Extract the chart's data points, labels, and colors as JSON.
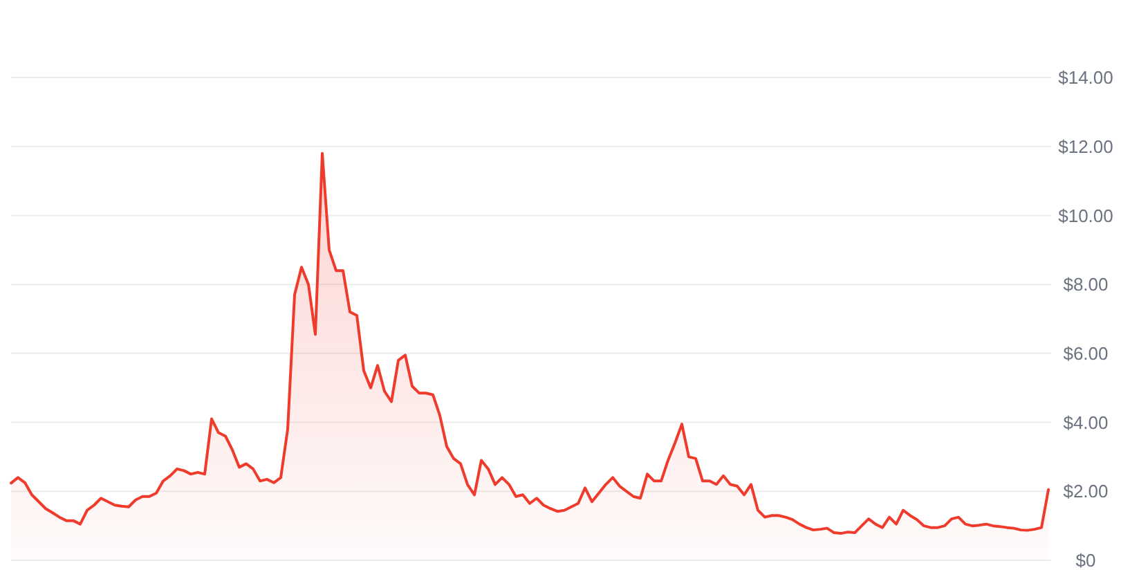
{
  "chart_data": {
    "type": "area",
    "categories": [
      null,
      null,
      null,
      null,
      null,
      null,
      null,
      null,
      null,
      null,
      null,
      null,
      null,
      null,
      null,
      null,
      null,
      null,
      null,
      null,
      null,
      null,
      null,
      null,
      null,
      null,
      null,
      null,
      null,
      null,
      null,
      null,
      null,
      null,
      null,
      null,
      null,
      null,
      null,
      null,
      null,
      null,
      null,
      null,
      null,
      null,
      null,
      null,
      null,
      null,
      null,
      null,
      null,
      null,
      null,
      null,
      null,
      null,
      null,
      null,
      null,
      null,
      null,
      null,
      null,
      null,
      null,
      null,
      null,
      null,
      null,
      null,
      null,
      null,
      null,
      null,
      null,
      null,
      null,
      null,
      null,
      null,
      null,
      null,
      null,
      null,
      null,
      null,
      null,
      null,
      null,
      null,
      null,
      null,
      null,
      null,
      null,
      null,
      null,
      null,
      null,
      null,
      null,
      null,
      null,
      null,
      null,
      null,
      null,
      null,
      null,
      null,
      null,
      null,
      null,
      null,
      null,
      null,
      null,
      null,
      null,
      null,
      null,
      null,
      null,
      null,
      null,
      null,
      null,
      null,
      null,
      null,
      null,
      null,
      null,
      null,
      null,
      null,
      null,
      null,
      null,
      null,
      null,
      null,
      null,
      null,
      null,
      null,
      null,
      null,
      null
    ],
    "series": [
      {
        "color": "#ef3b2c",
        "values": [
          2.24,
          2.4,
          2.25,
          1.9,
          1.7,
          1.5,
          1.38,
          1.25,
          1.15,
          1.15,
          1.05,
          1.45,
          1.6,
          1.8,
          1.7,
          1.6,
          1.57,
          1.55,
          1.75,
          1.85,
          1.85,
          1.95,
          2.3,
          2.45,
          2.65,
          2.6,
          2.5,
          2.55,
          2.5,
          4.1,
          3.7,
          3.6,
          3.2,
          2.7,
          2.8,
          2.65,
          2.3,
          2.35,
          2.25,
          2.4,
          3.8,
          7.7,
          8.5,
          8.0,
          6.55,
          11.8,
          9.0,
          8.4,
          8.4,
          7.2,
          7.1,
          5.5,
          5.0,
          5.65,
          4.9,
          4.6,
          5.8,
          5.95,
          5.05,
          4.85,
          4.85,
          4.8,
          4.2,
          3.3,
          2.95,
          2.8,
          2.2,
          1.9,
          2.9,
          2.65,
          2.2,
          2.4,
          2.2,
          1.85,
          1.9,
          1.65,
          1.8,
          1.6,
          1.5,
          1.42,
          1.45,
          1.55,
          1.65,
          2.1,
          1.7,
          1.95,
          2.2,
          2.4,
          2.15,
          2.0,
          1.85,
          1.8,
          2.5,
          2.3,
          2.3,
          2.9,
          3.4,
          3.95,
          3.0,
          2.95,
          2.3,
          2.3,
          2.2,
          2.45,
          2.2,
          2.15,
          1.9,
          2.2,
          1.45,
          1.25,
          1.3,
          1.3,
          1.25,
          1.18,
          1.05,
          0.95,
          0.88,
          0.9,
          0.93,
          0.8,
          0.78,
          0.82,
          0.8,
          1.0,
          1.2,
          1.05,
          0.95,
          1.25,
          1.05,
          1.45,
          1.3,
          1.18,
          1.0,
          0.95,
          0.95,
          1.0,
          1.2,
          1.25,
          1.05,
          1.0,
          1.02,
          1.05,
          1.0,
          0.98,
          0.95,
          0.93,
          0.88,
          0.87,
          0.9,
          0.95,
          2.05
        ]
      }
    ],
    "ylim": [
      0,
      14
    ],
    "yticks": [
      {
        "value": 0,
        "label": "$0"
      },
      {
        "value": 2,
        "label": "$2.00"
      },
      {
        "value": 4,
        "label": "$4.00"
      },
      {
        "value": 6,
        "label": "$6.00"
      },
      {
        "value": 8,
        "label": "$8.00"
      },
      {
        "value": 10,
        "label": "$10.00"
      },
      {
        "value": 12,
        "label": "$12.00"
      },
      {
        "value": 14,
        "label": "$14.00"
      }
    ],
    "grid": "y",
    "tick_labels": "y"
  }
}
